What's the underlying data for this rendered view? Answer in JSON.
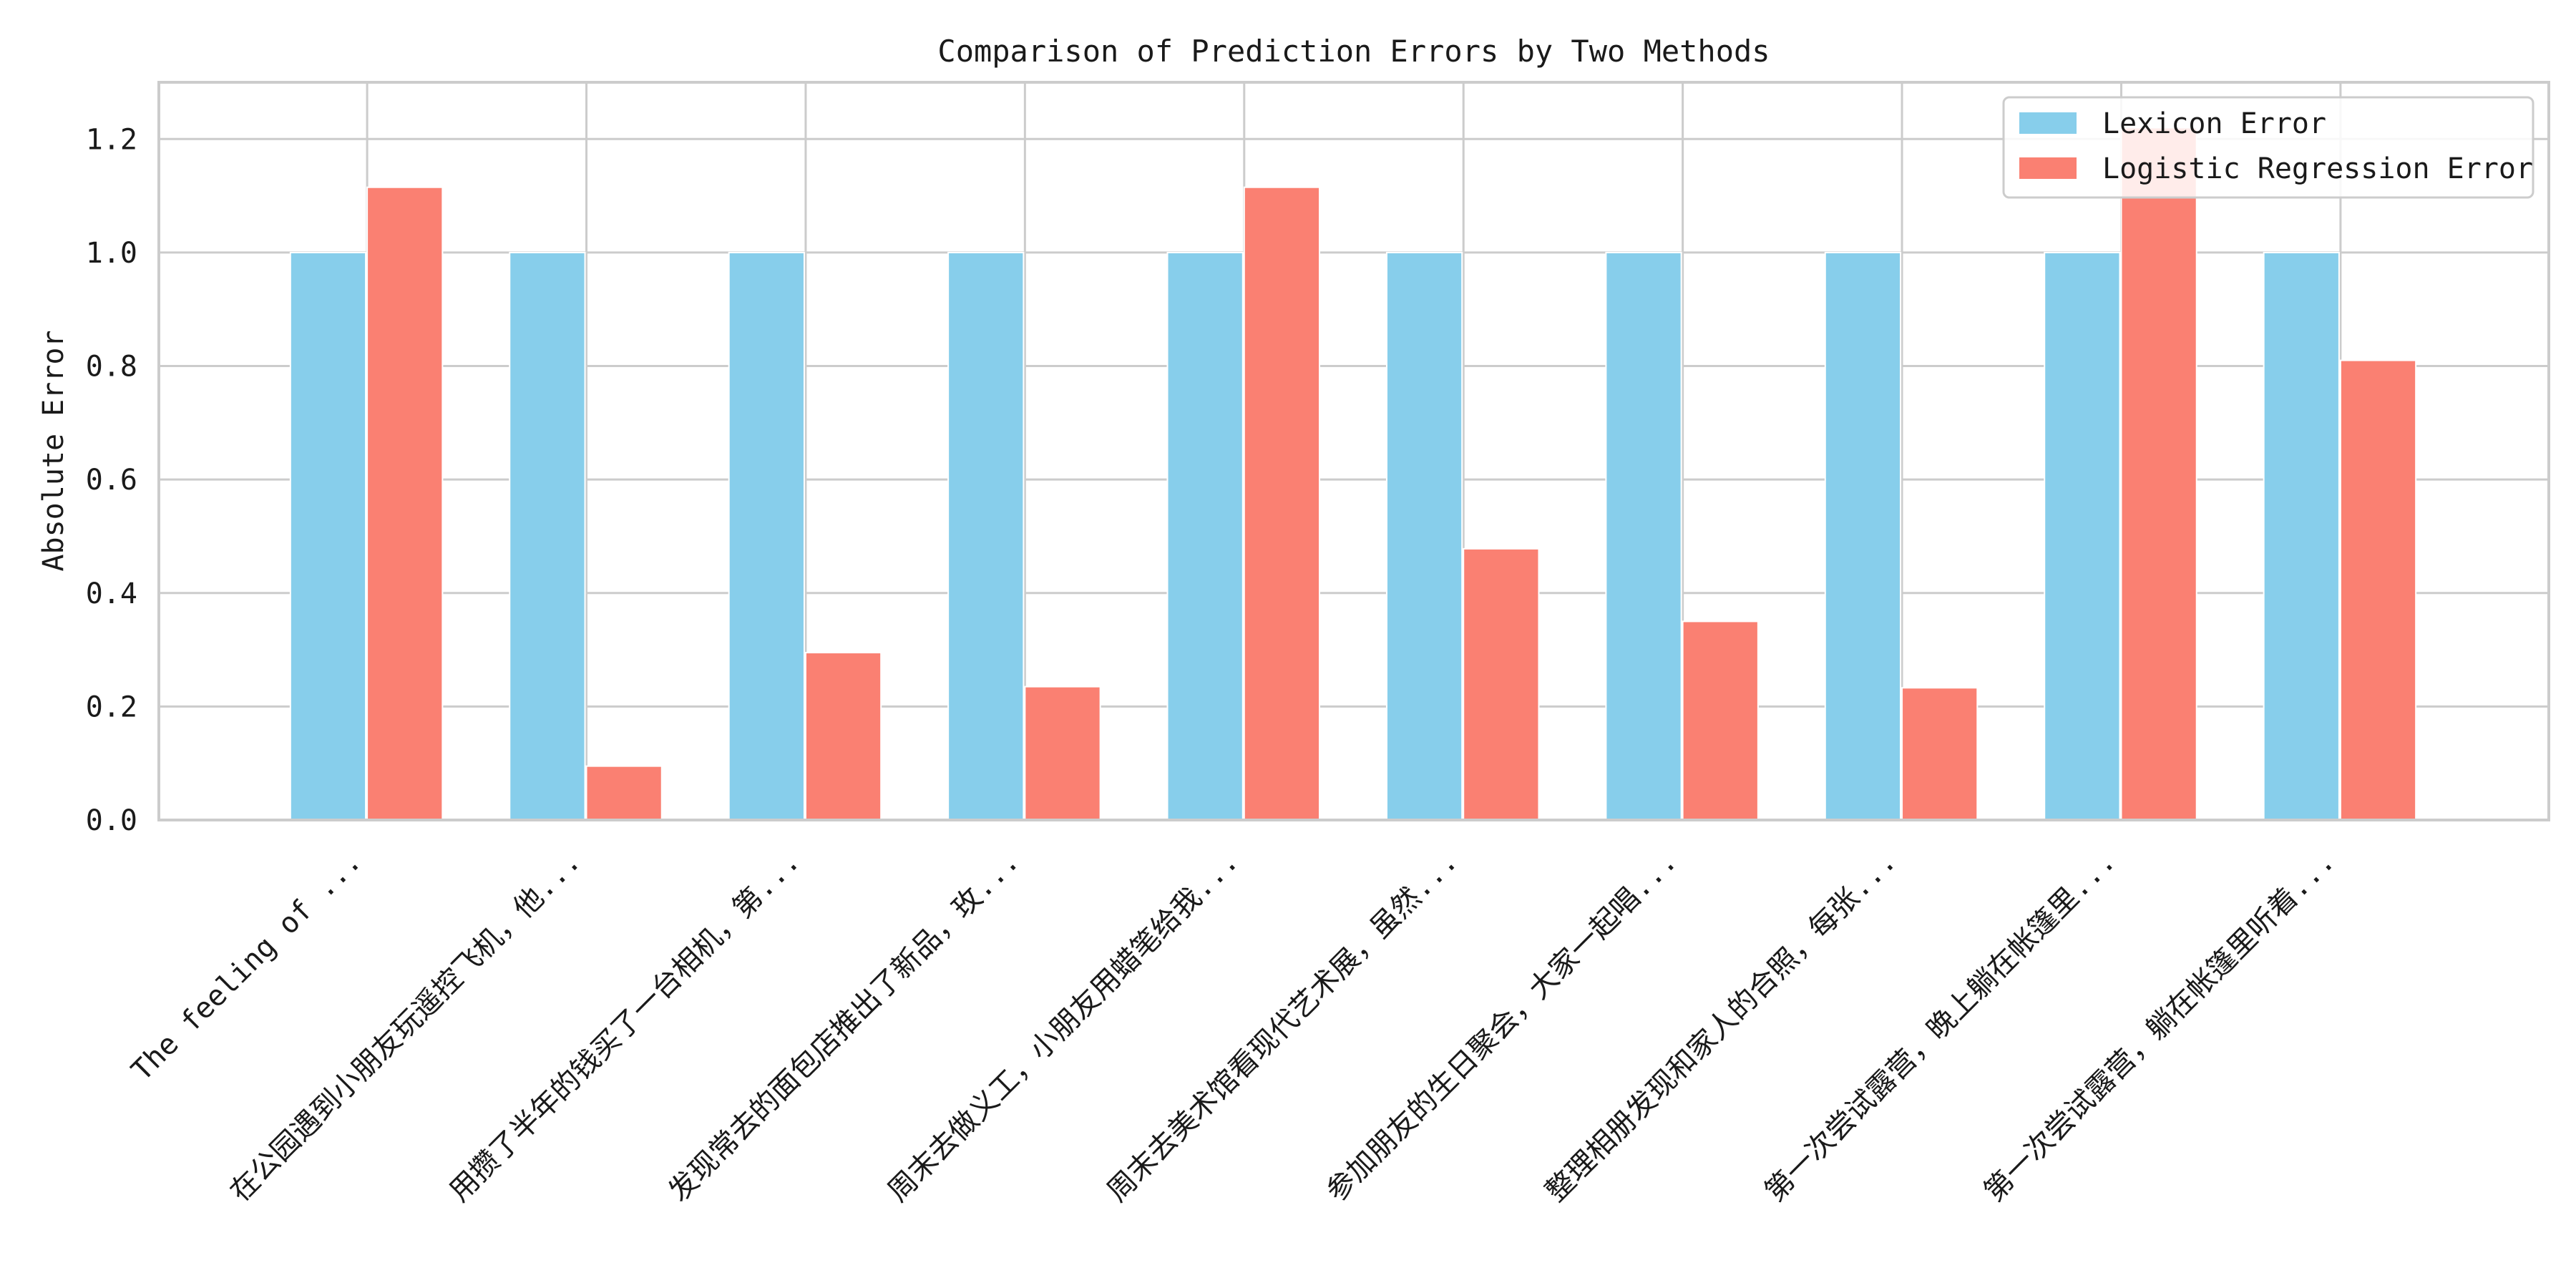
{
  "chart_data": {
    "type": "bar",
    "title": "Comparison of Prediction Errors by Two Methods",
    "xlabel": "",
    "ylabel": "Absolute Error",
    "ylim": [
      0,
      1.3
    ],
    "yticks": [
      "0.0",
      "0.2",
      "0.4",
      "0.6",
      "0.8",
      "1.0",
      "1.2"
    ],
    "grid": true,
    "legend_position": "top-right",
    "categories": [
      "The feeling of ...",
      "在公园遇到小朋友玩遥控飞机，他...",
      "用攒了半年的钱买了一台相机，第...",
      "发现常去的面包店推出了新品，玫...",
      "周末去做义工，小朋友用蜡笔给我...",
      "周末去美术馆看现代艺术展，虽然...",
      "参加朋友的生日聚会，大家一起唱...",
      "整理相册发现和家人的合照，每张...",
      "第一次尝试露营，晚上躺在帐篷里...",
      "第一次尝试露营，躺在帐篷里听着..."
    ],
    "series": [
      {
        "name": "Lexicon Error",
        "color": "#87ceeb",
        "values": [
          1.0,
          1.0,
          1.0,
          1.0,
          1.0,
          1.0,
          1.0,
          1.0,
          1.0,
          1.0
        ]
      },
      {
        "name": "Logistic Regression Error",
        "color": "#fa8072",
        "values": [
          1.115,
          0.095,
          0.295,
          0.235,
          1.115,
          0.478,
          0.35,
          0.233,
          1.22,
          0.81
        ]
      }
    ]
  }
}
